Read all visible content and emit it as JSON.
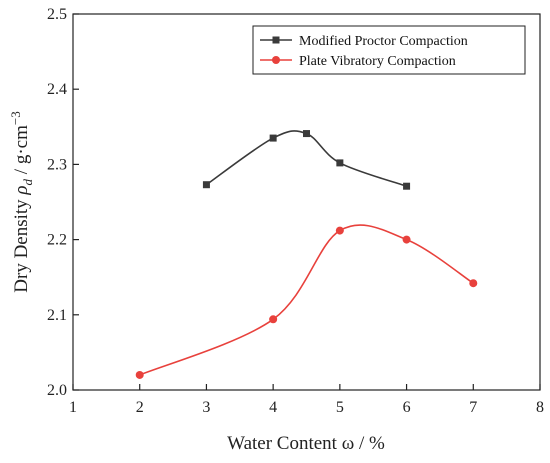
{
  "chart_data": {
    "type": "line",
    "xlabel": "Water Content ω / %",
    "ylabel_parts": {
      "prefix": "Dry Density ",
      "rho": "ρ",
      "sub": "d",
      "unit": "  / g·cm",
      "sup": "−3"
    },
    "xlim": [
      1,
      8
    ],
    "ylim": [
      2.0,
      2.5
    ],
    "xticks": [
      1,
      2,
      3,
      4,
      5,
      6,
      7,
      8
    ],
    "xtick_labels": [
      "1",
      "2",
      "3",
      "4",
      "5",
      "6",
      "7",
      "8"
    ],
    "yticks": [
      2.0,
      2.1,
      2.2,
      2.3,
      2.4,
      2.5
    ],
    "ytick_labels": [
      "2.0",
      "2.1",
      "2.2",
      "2.3",
      "2.4",
      "2.5"
    ],
    "grid": false,
    "legend_position": "top-right",
    "series": [
      {
        "name": "Modified Proctor Compaction",
        "marker": "square",
        "color": "#3a3a3a",
        "x": [
          3,
          4,
          4.5,
          5,
          6
        ],
        "y": [
          2.273,
          2.335,
          2.341,
          2.302,
          2.271
        ]
      },
      {
        "name": "Plate Vibratory Compaction",
        "marker": "circle",
        "color": "#e8413c",
        "x": [
          2,
          4,
          5,
          6,
          7
        ],
        "y": [
          2.02,
          2.094,
          2.212,
          2.2,
          2.142
        ]
      }
    ]
  }
}
